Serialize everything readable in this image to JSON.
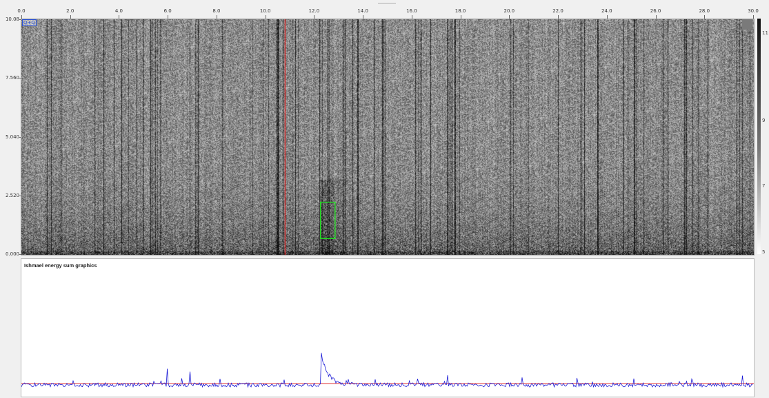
{
  "x_axis": {
    "ticks": [
      "0.0",
      "2.0",
      "4.0",
      "6.0",
      "8.0",
      "10.0",
      "12.0",
      "14.0",
      "16.0",
      "18.0",
      "20.0",
      "22.0",
      "24.0",
      "26.0",
      "28.0",
      "30.0"
    ],
    "range": [
      0,
      30
    ]
  },
  "y_axis": {
    "ticks": [
      "10.08",
      "7.560",
      "5.040",
      "2.520",
      "0.000"
    ],
    "range": [
      0,
      10.08
    ]
  },
  "spectrogram": {
    "tag": "Q+Q",
    "cursor_time": 10.8,
    "selection": {
      "t_start": 12.25,
      "t_end": 12.85,
      "f_low": 0.7,
      "f_high": 2.25
    },
    "colors": {
      "cursor": "#e02020",
      "selection": "#22dd22"
    }
  },
  "colorbar": {
    "labels": [
      "11",
      "9",
      "7",
      "5"
    ]
  },
  "energy_panel": {
    "title": "Ishmael energy sum graphics",
    "colors": {
      "line": "#1a1ad6",
      "threshold": "#e03030"
    }
  }
}
